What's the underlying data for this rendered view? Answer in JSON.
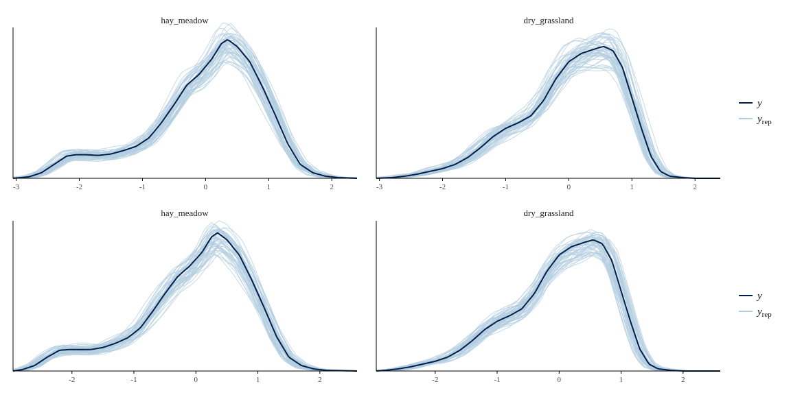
{
  "chart_data": [
    {
      "type": "line",
      "title": "hay_meadow",
      "xlim": [
        -3.05,
        2.4
      ],
      "xticks": [
        -3,
        -2,
        -1,
        0,
        1,
        2
      ],
      "ytick_labels": false,
      "observed": {
        "name": "y",
        "color": "#011f4b",
        "x": [
          -3.05,
          -2.8,
          -2.6,
          -2.4,
          -2.2,
          -2.05,
          -1.9,
          -1.7,
          -1.5,
          -1.3,
          -1.1,
          -0.9,
          -0.7,
          -0.5,
          -0.3,
          -0.1,
          0.1,
          0.25,
          0.35,
          0.5,
          0.7,
          0.9,
          1.1,
          1.3,
          1.5,
          1.7,
          1.9,
          2.1,
          2.4
        ],
        "y": [
          0.0,
          0.01,
          0.04,
          0.1,
          0.16,
          0.17,
          0.17,
          0.165,
          0.175,
          0.2,
          0.23,
          0.29,
          0.4,
          0.53,
          0.67,
          0.75,
          0.86,
          0.97,
          1.0,
          0.95,
          0.84,
          0.66,
          0.46,
          0.25,
          0.1,
          0.04,
          0.015,
          0.005,
          0.0
        ]
      },
      "replicated": {
        "name": "y_rep",
        "color": "#b3cde0",
        "draws": 50
      }
    },
    {
      "type": "line",
      "title": "dry_grassland",
      "xlim": [
        -3.05,
        2.4
      ],
      "xticks": [
        -3,
        -2,
        -1,
        0,
        1,
        2
      ],
      "ytick_labels": false,
      "observed": {
        "name": "y",
        "color": "#011f4b",
        "x": [
          -3.05,
          -2.8,
          -2.6,
          -2.4,
          -2.2,
          -2.0,
          -1.8,
          -1.6,
          -1.4,
          -1.2,
          -1.0,
          -0.8,
          -0.6,
          -0.4,
          -0.2,
          0.0,
          0.2,
          0.4,
          0.55,
          0.7,
          0.85,
          1.0,
          1.15,
          1.3,
          1.45,
          1.6,
          1.8,
          2.0,
          2.4
        ],
        "y": [
          0.0,
          0.005,
          0.015,
          0.03,
          0.05,
          0.07,
          0.1,
          0.15,
          0.22,
          0.3,
          0.36,
          0.4,
          0.45,
          0.56,
          0.72,
          0.84,
          0.9,
          0.93,
          0.95,
          0.92,
          0.8,
          0.58,
          0.36,
          0.16,
          0.05,
          0.015,
          0.005,
          0.0,
          0.0
        ]
      },
      "replicated": {
        "name": "y_rep",
        "color": "#b3cde0",
        "draws": 50
      }
    },
    {
      "type": "line",
      "title": "hay_meadow",
      "xlim": [
        -2.95,
        2.6
      ],
      "xticks": [
        -2,
        -1,
        0,
        1,
        2
      ],
      "ytick_labels": false,
      "observed": {
        "name": "y",
        "color": "#011f4b",
        "x": [
          -2.95,
          -2.8,
          -2.6,
          -2.4,
          -2.2,
          -2.05,
          -1.9,
          -1.7,
          -1.5,
          -1.3,
          -1.1,
          -0.9,
          -0.7,
          -0.5,
          -0.3,
          -0.1,
          0.1,
          0.25,
          0.35,
          0.5,
          0.7,
          0.9,
          1.1,
          1.3,
          1.5,
          1.7,
          1.9,
          2.1,
          2.6
        ],
        "y": [
          0.0,
          0.01,
          0.04,
          0.1,
          0.15,
          0.155,
          0.155,
          0.155,
          0.17,
          0.2,
          0.24,
          0.31,
          0.43,
          0.56,
          0.68,
          0.76,
          0.86,
          0.97,
          1.0,
          0.95,
          0.84,
          0.66,
          0.46,
          0.25,
          0.1,
          0.04,
          0.015,
          0.005,
          0.0
        ]
      },
      "replicated": {
        "name": "y_rep",
        "color": "#b3cde0",
        "draws": 50
      }
    },
    {
      "type": "line",
      "title": "dry_grassland",
      "xlim": [
        -2.95,
        2.6
      ],
      "xticks": [
        -2,
        -1,
        0,
        1,
        2
      ],
      "ytick_labels": false,
      "observed": {
        "name": "y",
        "color": "#011f4b",
        "x": [
          -2.95,
          -2.8,
          -2.6,
          -2.4,
          -2.2,
          -2.0,
          -1.8,
          -1.6,
          -1.4,
          -1.2,
          -1.0,
          -0.8,
          -0.6,
          -0.4,
          -0.2,
          0.0,
          0.2,
          0.4,
          0.55,
          0.7,
          0.85,
          1.0,
          1.15,
          1.3,
          1.45,
          1.6,
          1.8,
          2.0,
          2.6
        ],
        "y": [
          0.0,
          0.005,
          0.015,
          0.03,
          0.05,
          0.07,
          0.1,
          0.15,
          0.22,
          0.3,
          0.36,
          0.4,
          0.45,
          0.56,
          0.72,
          0.84,
          0.9,
          0.93,
          0.95,
          0.92,
          0.8,
          0.58,
          0.36,
          0.16,
          0.05,
          0.015,
          0.005,
          0.0,
          0.0
        ]
      },
      "replicated": {
        "name": "y_rep",
        "color": "#b3cde0",
        "draws": 50
      }
    }
  ],
  "legends": [
    {
      "placement": "right",
      "items": [
        {
          "label": "y",
          "sub": "",
          "color": "#011f4b"
        },
        {
          "label": "y",
          "sub": "rep",
          "color": "#b3cde0"
        }
      ]
    },
    {
      "placement": "right",
      "items": [
        {
          "label": "y",
          "sub": "",
          "color": "#011f4b"
        },
        {
          "label": "y",
          "sub": "rep",
          "color": "#b3cde0"
        }
      ]
    }
  ]
}
